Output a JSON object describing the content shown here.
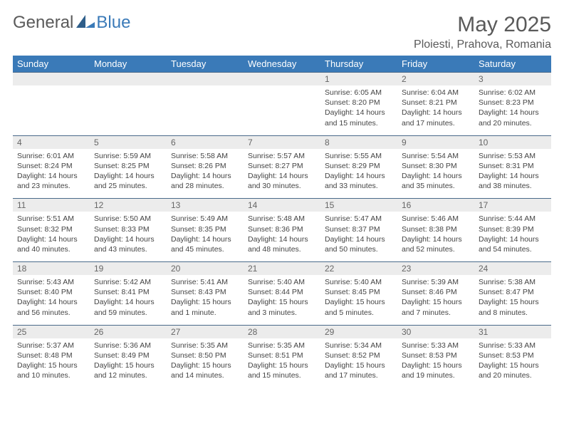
{
  "brand": {
    "general": "General",
    "blue": "Blue"
  },
  "title": "May 2025",
  "location": "Ploiesti, Prahova, Romania",
  "headers": [
    "Sunday",
    "Monday",
    "Tuesday",
    "Wednesday",
    "Thursday",
    "Friday",
    "Saturday"
  ],
  "colors": {
    "header_bg": "#3a7ab8",
    "header_fg": "#ffffff",
    "daynum_bg": "#ececec",
    "daynum_fg": "#666666",
    "text": "#444444",
    "rule": "#4a6a8a",
    "logo_gray": "#5a5a5a",
    "logo_blue": "#3a7ab8"
  },
  "weeks": [
    [
      null,
      null,
      null,
      null,
      {
        "n": "1",
        "sr": "6:05 AM",
        "ss": "8:20 PM",
        "dl": "14 hours and 15 minutes."
      },
      {
        "n": "2",
        "sr": "6:04 AM",
        "ss": "8:21 PM",
        "dl": "14 hours and 17 minutes."
      },
      {
        "n": "3",
        "sr": "6:02 AM",
        "ss": "8:23 PM",
        "dl": "14 hours and 20 minutes."
      }
    ],
    [
      {
        "n": "4",
        "sr": "6:01 AM",
        "ss": "8:24 PM",
        "dl": "14 hours and 23 minutes."
      },
      {
        "n": "5",
        "sr": "5:59 AM",
        "ss": "8:25 PM",
        "dl": "14 hours and 25 minutes."
      },
      {
        "n": "6",
        "sr": "5:58 AM",
        "ss": "8:26 PM",
        "dl": "14 hours and 28 minutes."
      },
      {
        "n": "7",
        "sr": "5:57 AM",
        "ss": "8:27 PM",
        "dl": "14 hours and 30 minutes."
      },
      {
        "n": "8",
        "sr": "5:55 AM",
        "ss": "8:29 PM",
        "dl": "14 hours and 33 minutes."
      },
      {
        "n": "9",
        "sr": "5:54 AM",
        "ss": "8:30 PM",
        "dl": "14 hours and 35 minutes."
      },
      {
        "n": "10",
        "sr": "5:53 AM",
        "ss": "8:31 PM",
        "dl": "14 hours and 38 minutes."
      }
    ],
    [
      {
        "n": "11",
        "sr": "5:51 AM",
        "ss": "8:32 PM",
        "dl": "14 hours and 40 minutes."
      },
      {
        "n": "12",
        "sr": "5:50 AM",
        "ss": "8:33 PM",
        "dl": "14 hours and 43 minutes."
      },
      {
        "n": "13",
        "sr": "5:49 AM",
        "ss": "8:35 PM",
        "dl": "14 hours and 45 minutes."
      },
      {
        "n": "14",
        "sr": "5:48 AM",
        "ss": "8:36 PM",
        "dl": "14 hours and 48 minutes."
      },
      {
        "n": "15",
        "sr": "5:47 AM",
        "ss": "8:37 PM",
        "dl": "14 hours and 50 minutes."
      },
      {
        "n": "16",
        "sr": "5:46 AM",
        "ss": "8:38 PM",
        "dl": "14 hours and 52 minutes."
      },
      {
        "n": "17",
        "sr": "5:44 AM",
        "ss": "8:39 PM",
        "dl": "14 hours and 54 minutes."
      }
    ],
    [
      {
        "n": "18",
        "sr": "5:43 AM",
        "ss": "8:40 PM",
        "dl": "14 hours and 56 minutes."
      },
      {
        "n": "19",
        "sr": "5:42 AM",
        "ss": "8:41 PM",
        "dl": "14 hours and 59 minutes."
      },
      {
        "n": "20",
        "sr": "5:41 AM",
        "ss": "8:43 PM",
        "dl": "15 hours and 1 minute."
      },
      {
        "n": "21",
        "sr": "5:40 AM",
        "ss": "8:44 PM",
        "dl": "15 hours and 3 minutes."
      },
      {
        "n": "22",
        "sr": "5:40 AM",
        "ss": "8:45 PM",
        "dl": "15 hours and 5 minutes."
      },
      {
        "n": "23",
        "sr": "5:39 AM",
        "ss": "8:46 PM",
        "dl": "15 hours and 7 minutes."
      },
      {
        "n": "24",
        "sr": "5:38 AM",
        "ss": "8:47 PM",
        "dl": "15 hours and 8 minutes."
      }
    ],
    [
      {
        "n": "25",
        "sr": "5:37 AM",
        "ss": "8:48 PM",
        "dl": "15 hours and 10 minutes."
      },
      {
        "n": "26",
        "sr": "5:36 AM",
        "ss": "8:49 PM",
        "dl": "15 hours and 12 minutes."
      },
      {
        "n": "27",
        "sr": "5:35 AM",
        "ss": "8:50 PM",
        "dl": "15 hours and 14 minutes."
      },
      {
        "n": "28",
        "sr": "5:35 AM",
        "ss": "8:51 PM",
        "dl": "15 hours and 15 minutes."
      },
      {
        "n": "29",
        "sr": "5:34 AM",
        "ss": "8:52 PM",
        "dl": "15 hours and 17 minutes."
      },
      {
        "n": "30",
        "sr": "5:33 AM",
        "ss": "8:53 PM",
        "dl": "15 hours and 19 minutes."
      },
      {
        "n": "31",
        "sr": "5:33 AM",
        "ss": "8:53 PM",
        "dl": "15 hours and 20 minutes."
      }
    ]
  ],
  "labels": {
    "sunrise": "Sunrise: ",
    "sunset": "Sunset: ",
    "daylight": "Daylight: "
  }
}
